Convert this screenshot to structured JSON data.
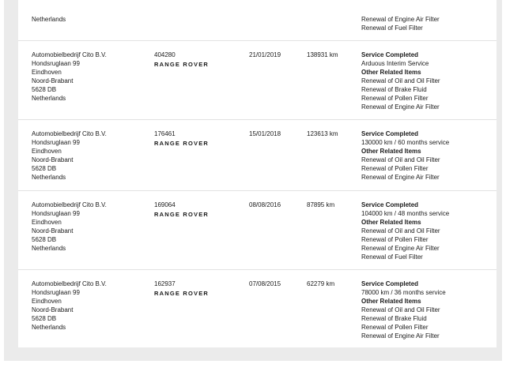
{
  "partial_top": {
    "dealer_last_line": "Netherlands",
    "items": [
      "Renewal of Engine Air Filter",
      "Renewal of Fuel Filter"
    ]
  },
  "records": [
    {
      "dealer": [
        "Automobielbedrijf Cito B.V.",
        "Hondsruglaan 99",
        "Eindhoven",
        "Noord-Brabant",
        "5628 DB",
        "Netherlands"
      ],
      "ref": "404280",
      "brand": "RANGE ROVER",
      "date": "21/01/2019",
      "km": "138931 km",
      "service_heading": "Service Completed",
      "service_type": "Arduous Interim Service",
      "other_heading": "Other Related Items",
      "items": [
        "Renewal of Oil and Oil Filter",
        "Renewal of Brake Fluid",
        "Renewal of Pollen Filter",
        "Renewal of Engine Air Filter"
      ]
    },
    {
      "dealer": [
        "Automobielbedrijf Cito B.V.",
        "Hondsruglaan 99",
        "Eindhoven",
        "Noord-Brabant",
        "5628 DB",
        "Netherlands"
      ],
      "ref": "176461",
      "brand": "RANGE ROVER",
      "date": "15/01/2018",
      "km": "123613 km",
      "service_heading": "Service Completed",
      "service_type": "130000 km / 60 months service",
      "other_heading": "Other Related Items",
      "items": [
        "Renewal of Oil and Oil Filter",
        "Renewal of Pollen Filter",
        "Renewal of Engine Air Filter"
      ]
    },
    {
      "dealer": [
        "Automobielbedrijf Cito B.V.",
        "Hondsruglaan 99",
        "Eindhoven",
        "Noord-Brabant",
        "5628 DB",
        "Netherlands"
      ],
      "ref": "169064",
      "brand": "RANGE ROVER",
      "date": "08/08/2016",
      "km": "87895 km",
      "service_heading": "Service Completed",
      "service_type": "104000 km / 48 months service",
      "other_heading": "Other Related Items",
      "items": [
        "Renewal of Oil and Oil Filter",
        "Renewal of Pollen Filter",
        "Renewal of Engine Air Filter",
        "Renewal of Fuel Filter"
      ]
    },
    {
      "dealer": [
        "Automobielbedrijf Cito B.V.",
        "Hondsruglaan 99",
        "Eindhoven",
        "Noord-Brabant",
        "5628 DB",
        "Netherlands"
      ],
      "ref": "162937",
      "brand": "RANGE ROVER",
      "date": "07/08/2015",
      "km": "62279 km",
      "service_heading": "Service Completed",
      "service_type": "78000 km / 36 months service",
      "other_heading": "Other Related Items",
      "items": [
        "Renewal of Oil and Oil Filter",
        "Renewal of Brake Fluid",
        "Renewal of Pollen Filter",
        "Renewal of Engine Air Filter"
      ]
    }
  ]
}
